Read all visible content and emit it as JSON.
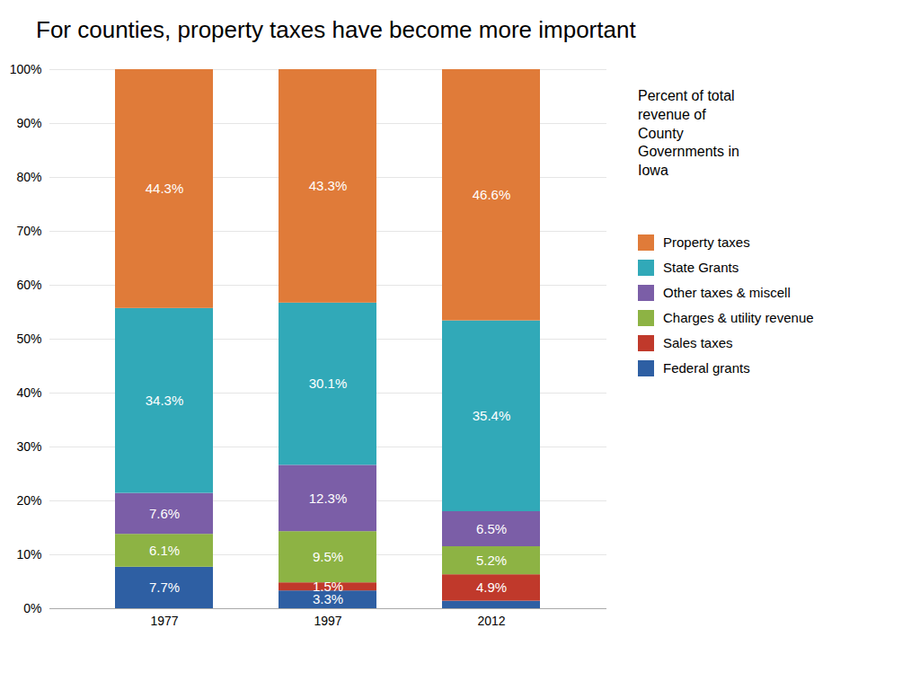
{
  "chart_data": {
    "type": "bar",
    "title": "For counties, property taxes have become more important",
    "annotation": "Percent of total\nrevenue of\nCounty\nGovernments in\nIowa",
    "categories": [
      "1977",
      "1997",
      "2012"
    ],
    "series": [
      {
        "name": "Federal grants",
        "color": "#2e5fa3",
        "values": [
          7.7,
          3.3,
          1.4
        ],
        "value_labels": [
          "7.7%",
          "3.3%",
          null
        ]
      },
      {
        "name": "Sales taxes",
        "color": "#c0392b",
        "values": [
          0.0,
          1.5,
          4.9
        ],
        "value_labels": [
          null,
          "1.5%",
          "4.9%"
        ]
      },
      {
        "name": "Charges & utility revenue",
        "color": "#8db344",
        "values": [
          6.1,
          9.5,
          5.2
        ],
        "value_labels": [
          "6.1%",
          "9.5%",
          "5.2%"
        ]
      },
      {
        "name": "Other taxes & miscell",
        "color": "#7b5ea7",
        "values": [
          7.6,
          12.3,
          6.5
        ],
        "value_labels": [
          "7.6%",
          "12.3%",
          "6.5%"
        ]
      },
      {
        "name": "State Grants",
        "color": "#31a9b8",
        "values": [
          34.3,
          30.1,
          35.4
        ],
        "value_labels": [
          "34.3%",
          "30.1%",
          "35.4%"
        ]
      },
      {
        "name": "Property taxes",
        "color": "#e07b39",
        "values": [
          44.3,
          43.3,
          46.6
        ],
        "value_labels": [
          "44.3%",
          "43.3%",
          "46.6%"
        ]
      }
    ],
    "stacked": true,
    "data_labels": true,
    "ylim": [
      0,
      100
    ],
    "yticks": [
      {
        "value": 0,
        "label": "0%"
      },
      {
        "value": 10,
        "label": "10%"
      },
      {
        "value": 20,
        "label": "20%"
      },
      {
        "value": 30,
        "label": "30%"
      },
      {
        "value": 40,
        "label": "40%"
      },
      {
        "value": 50,
        "label": "50%"
      },
      {
        "value": 60,
        "label": "60%"
      },
      {
        "value": 70,
        "label": "70%"
      },
      {
        "value": 80,
        "label": "80%"
      },
      {
        "value": 90,
        "label": "90%"
      },
      {
        "value": 100,
        "label": "100%"
      }
    ],
    "grid": true,
    "legend": "right"
  }
}
